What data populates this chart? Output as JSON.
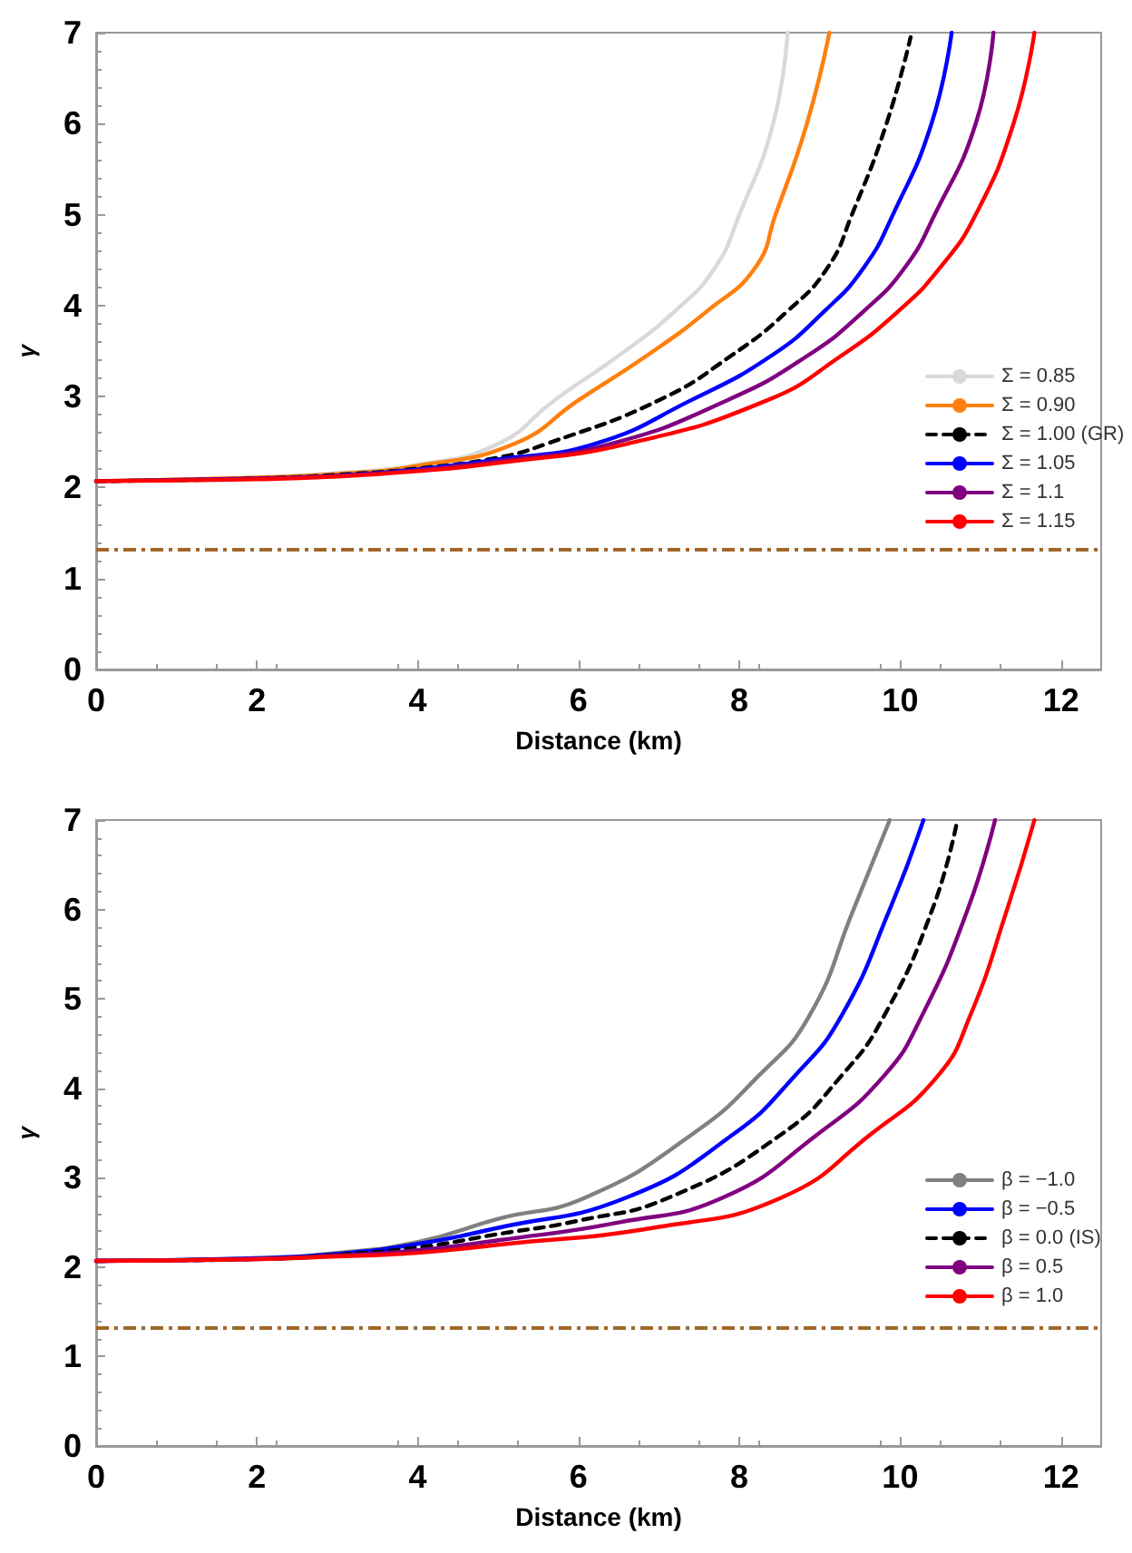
{
  "chart_data": [
    {
      "type": "line",
      "xlabel": "Distance (km)",
      "ylabel": "γ",
      "xlim": [
        0,
        12.5
      ],
      "ylim": [
        0,
        7
      ],
      "xticks": [
        0,
        2,
        4,
        6,
        8,
        10,
        12
      ],
      "yticks": [
        0,
        1,
        2,
        3,
        4,
        5,
        6,
        7
      ],
      "grid": false,
      "legend": "bottom right",
      "marker": "none",
      "ref_lines": [
        {
          "axis": "y",
          "value": 1.33,
          "color": "#a0672a",
          "line_style": "dashed"
        }
      ],
      "series": [
        {
          "name": "Σ = 0.85",
          "color": "#d9d9d9",
          "line_style": "solid",
          "x": [
            0,
            2,
            3,
            4,
            5.0,
            5.7,
            6.5,
            7.2,
            7.7,
            8.0,
            8.42,
            8.6
          ],
          "values": [
            2.07,
            2.11,
            2.16,
            2.25,
            2.48,
            2.96,
            3.45,
            3.94,
            4.42,
            5,
            6,
            7
          ]
        },
        {
          "name": "Σ = 0.90",
          "color": "#ff7f0e",
          "line_style": "solid",
          "x": [
            0,
            2,
            3,
            4,
            5.2,
            6.0,
            6.85,
            7.6,
            8.2,
            8.45,
            8.84,
            9.12
          ],
          "values": [
            2.07,
            2.11,
            2.15,
            2.24,
            2.48,
            2.96,
            3.45,
            3.94,
            4.42,
            5,
            6,
            7
          ]
        },
        {
          "name": "Σ = 1.00 (GR)",
          "color": "#000000",
          "line_style": "dashed",
          "x": [
            0,
            2,
            3,
            4,
            5.0,
            5.6,
            7.0,
            7.9,
            8.6,
            9.1,
            9.4,
            9.83,
            10.13
          ],
          "values": [
            2.07,
            2.1,
            2.14,
            2.21,
            2.33,
            2.48,
            2.96,
            3.45,
            3.94,
            4.42,
            5,
            6,
            6.95
          ]
        },
        {
          "name": "Σ = 1.05",
          "color": "#0000ff",
          "line_style": "solid",
          "x": [
            3,
            4,
            5,
            6.2,
            7.4,
            8.4,
            9.06,
            9.55,
            9.91,
            10.39,
            10.64
          ],
          "values": [
            2.13,
            2.2,
            2.31,
            2.48,
            2.96,
            3.45,
            3.94,
            4.42,
            5,
            6,
            7
          ]
        },
        {
          "name": "Σ = 1.1",
          "color": "#800080",
          "line_style": "solid",
          "x": [
            0,
            2,
            3,
            4,
            5,
            6.4,
            7.85,
            8.85,
            9.55,
            10.06,
            10.43,
            10.94,
            11.16
          ],
          "values": [
            2.07,
            2.1,
            2.13,
            2.19,
            2.29,
            2.48,
            2.96,
            3.45,
            3.94,
            4.42,
            5,
            6,
            7
          ]
        },
        {
          "name": "Σ = 1.15",
          "color": "#ff0000",
          "line_style": "solid",
          "x": [
            0,
            2,
            3,
            4,
            5,
            6.6,
            8.35,
            9.27,
            9.98,
            10.5,
            10.94,
            11.41,
            11.67
          ],
          "values": [
            2.07,
            2.09,
            2.12,
            2.18,
            2.27,
            2.48,
            2.96,
            3.45,
            3.94,
            4.42,
            5,
            6,
            7
          ]
        }
      ]
    },
    {
      "type": "line",
      "xlabel": "Distance (km)",
      "ylabel": "γ",
      "xlim": [
        0,
        12.5
      ],
      "ylim": [
        0,
        7
      ],
      "xticks": [
        0,
        2,
        4,
        6,
        8,
        10,
        12
      ],
      "yticks": [
        0,
        1,
        2,
        3,
        4,
        5,
        6,
        7
      ],
      "grid": false,
      "legend": "bottom right",
      "marker": "none",
      "ref_lines": [
        {
          "axis": "y",
          "value": 1.33,
          "color": "#a0672a",
          "line_style": "dashed"
        }
      ],
      "series": [
        {
          "name": "β = −1.0",
          "color": "#808080",
          "line_style": "solid",
          "x": [
            0,
            2,
            3,
            4,
            5,
            6.09,
            7.42,
            8.24,
            8.87,
            9.42,
            9.87
          ],
          "values": [
            2.07,
            2.1,
            2.16,
            2.28,
            2.54,
            2.78,
            3.49,
            4.14,
            4.81,
            6,
            7
          ]
        },
        {
          "name": "β = −0.5",
          "color": "#0000ff",
          "line_style": "solid",
          "x": [
            0,
            2,
            3,
            4,
            5,
            6.6,
            7.93,
            8.69,
            9.27,
            9.87,
            10.29
          ],
          "values": [
            2.07,
            2.1,
            2.15,
            2.26,
            2.44,
            2.78,
            3.49,
            4.14,
            4.81,
            6,
            7
          ]
        },
        {
          "name": "β = 0.0 (IS)",
          "color": "#000000",
          "line_style": "dashed",
          "x": [
            0,
            2,
            3,
            4,
            5,
            6,
            7.13,
            8.53,
            9.27,
            9.8,
            10.4,
            10.7
          ],
          "values": [
            2.07,
            2.09,
            2.14,
            2.22,
            2.37,
            2.52,
            2.78,
            3.49,
            4.14,
            4.81,
            6,
            6.95
          ]
        },
        {
          "name": "β = 0.5",
          "color": "#800080",
          "line_style": "solid",
          "x": [
            0,
            2,
            3,
            4,
            5,
            6.5,
            7.8,
            8.98,
            9.8,
            10.27,
            10.84,
            11.18
          ],
          "values": [
            2.07,
            2.09,
            2.13,
            2.19,
            2.3,
            2.5,
            2.78,
            3.49,
            4.14,
            4.81,
            6,
            7
          ]
        },
        {
          "name": "β = 1.0",
          "color": "#ff0000",
          "line_style": "solid",
          "x": [
            0,
            2,
            3,
            4,
            5,
            7,
            8.53,
            9.64,
            10.47,
            10.87,
            11.33,
            11.67
          ],
          "values": [
            2.07,
            2.09,
            2.12,
            2.16,
            2.25,
            2.45,
            2.78,
            3.49,
            4.14,
            4.81,
            6,
            7
          ]
        }
      ]
    }
  ]
}
